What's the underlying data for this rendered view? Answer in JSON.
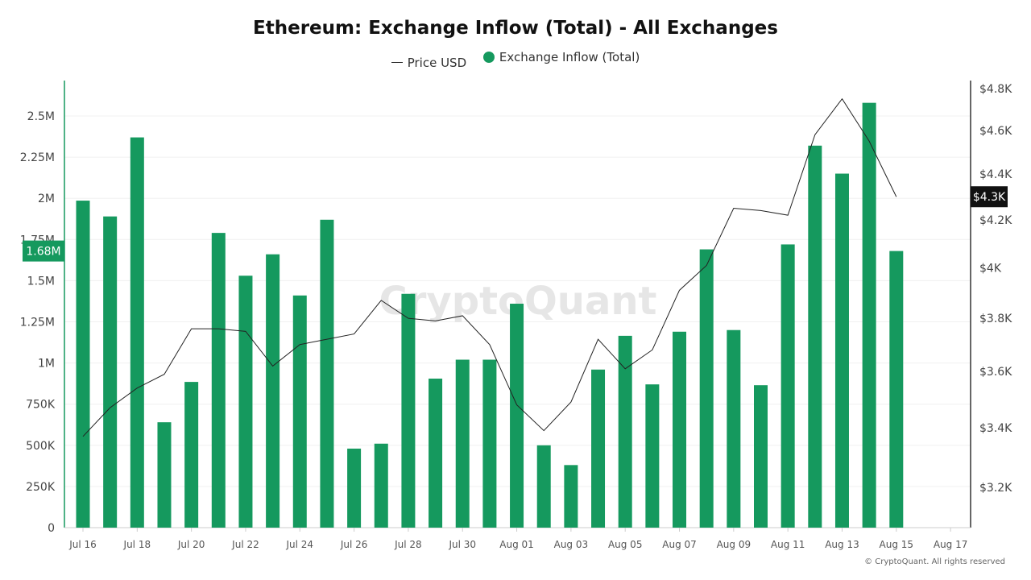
{
  "chart_data": {
    "type": "bar+line",
    "title": "Ethereum: Exchange Inflow (Total) - All Exchanges",
    "legend": [
      "Price USD",
      "Exchange Inflow (Total)"
    ],
    "legend_placement": "top",
    "categories": [
      "Jul 16",
      "Jul 17",
      "Jul 18",
      "Jul 19",
      "Jul 20",
      "Jul 21",
      "Jul 22",
      "Jul 23",
      "Jul 24",
      "Jul 25",
      "Jul 26",
      "Jul 27",
      "Jul 28",
      "Jul 29",
      "Jul 30",
      "Jul 31",
      "Aug 01",
      "Aug 02",
      "Aug 03",
      "Aug 04",
      "Aug 05",
      "Aug 06",
      "Aug 07",
      "Aug 08",
      "Aug 09",
      "Aug 10",
      "Aug 11",
      "Aug 12",
      "Aug 13",
      "Aug 14",
      "Aug 15"
    ],
    "x_tick_labels": [
      "Jul 16",
      "Jul 18",
      "Jul 20",
      "Jul 22",
      "Jul 24",
      "Jul 26",
      "Jul 28",
      "Jul 30",
      "Aug 01",
      "Aug 03",
      "Aug 05",
      "Aug 07",
      "Aug 09",
      "Aug 11",
      "Aug 13",
      "Aug 15",
      "Aug 17"
    ],
    "series": [
      {
        "name": "Exchange Inflow (Total)",
        "type": "bar",
        "axis": "left",
        "color": "#15995e",
        "values": [
          1986000,
          1890000,
          2370000,
          640000,
          885000,
          1790000,
          1530000,
          1660000,
          1410000,
          1870000,
          480000,
          510000,
          1420000,
          905000,
          1020000,
          1020000,
          1360000,
          500000,
          380000,
          960000,
          1165000,
          870000,
          1190000,
          1690000,
          1200000,
          865000,
          1720000,
          2320000,
          2150000,
          2580000,
          1680000
        ]
      },
      {
        "name": "Price USD",
        "type": "line",
        "axis": "right",
        "color": "#222222",
        "values": [
          3370,
          3470,
          3540,
          3590,
          3760,
          3760,
          3750,
          3620,
          3700,
          3720,
          3740,
          3870,
          3800,
          3790,
          3810,
          3700,
          3480,
          3390,
          3490,
          3720,
          3610,
          3680,
          3910,
          4010,
          4250,
          4240,
          4220,
          4580,
          4750,
          4550,
          4300
        ]
      }
    ],
    "left_axis": {
      "ticks": [
        "0",
        "250K",
        "500K",
        "750K",
        "1M",
        "1.25M",
        "1.5M",
        "1.75M",
        "2M",
        "2.25M",
        "2.5M"
      ],
      "ylim": [
        0,
        2750000
      ]
    },
    "right_axis": {
      "scale": "log",
      "ticks": [
        "$3.2K",
        "$3.4K",
        "$3.6K",
        "$3.8K",
        "$4K",
        "$4.2K",
        "$4.4K",
        "$4.6K",
        "$4.8K"
      ],
      "ylim": [
        3140,
        4830
      ]
    },
    "current_value_labels": {
      "left": "1.68M",
      "right": "$4.3K"
    },
    "grid": true,
    "watermark": "CryptoQuant",
    "credit": "© CryptoQuant. All rights reserved"
  }
}
